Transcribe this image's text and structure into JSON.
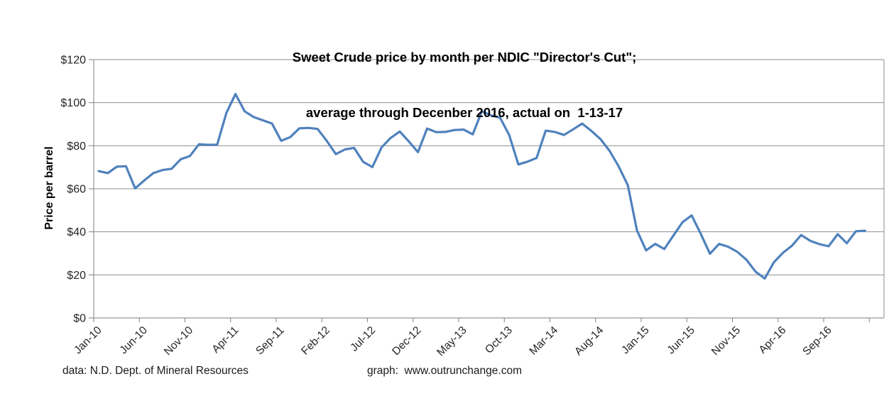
{
  "title": {
    "line1": "Sweet Crude price by month per NDIC \"Director's Cut\";",
    "line2": "average through Decenber 2016, actual on  1-13-17"
  },
  "footer": {
    "data_source": "data: N.D. Dept. of Mineral Resources",
    "graph_credit": "graph:  www.outrunchange.com"
  },
  "colors": {
    "line": "#4F81BD",
    "gridline": "#8e8e8e",
    "axis": "#7f7f7f",
    "tick_text": "#262626"
  },
  "chart_data": {
    "type": "line",
    "title": "Sweet Crude price by month per NDIC \"Director's Cut\"; average through Decenber 2016, actual on  1-13-17",
    "xlabel": "",
    "ylabel": "Price per barrel",
    "ylim": [
      0,
      120
    ],
    "ytick_step": 20,
    "ytick_prefix": "$",
    "xtick_every": 5,
    "grid": true,
    "legend": "none",
    "categories": [
      "Jan-10",
      "Feb-10",
      "Mar-10",
      "Apr-10",
      "May-10",
      "Jun-10",
      "Jul-10",
      "Aug-10",
      "Sep-10",
      "Oct-10",
      "Nov-10",
      "Dec-10",
      "Jan-11",
      "Feb-11",
      "Mar-11",
      "Apr-11",
      "May-11",
      "Jun-11",
      "Jul-11",
      "Aug-11",
      "Sep-11",
      "Oct-11",
      "Nov-11",
      "Dec-11",
      "Jan-12",
      "Feb-12",
      "Mar-12",
      "Apr-12",
      "May-12",
      "Jun-12",
      "Jul-12",
      "Aug-12",
      "Sep-12",
      "Oct-12",
      "Nov-12",
      "Dec-12",
      "Jan-13",
      "Feb-13",
      "Mar-13",
      "Apr-13",
      "May-13",
      "Jun-13",
      "Jul-13",
      "Aug-13",
      "Sep-13",
      "Oct-13",
      "Nov-13",
      "Dec-13",
      "Jan-14",
      "Feb-14",
      "Mar-14",
      "Apr-14",
      "May-14",
      "Jun-14",
      "Jul-14",
      "Aug-14",
      "Sep-14",
      "Oct-14",
      "Nov-14",
      "Dec-14",
      "Jan-15",
      "Feb-15",
      "Mar-15",
      "Apr-15",
      "May-15",
      "Jun-15",
      "Jul-15",
      "Aug-15",
      "Sep-15",
      "Oct-15",
      "Nov-15",
      "Dec-15",
      "Jan-16",
      "Feb-16",
      "Mar-16",
      "Apr-16",
      "May-16",
      "Jun-16",
      "Jul-16",
      "Aug-16",
      "Sep-16",
      "Oct-16",
      "Nov-16",
      "Dec-16",
      "Jan-17"
    ],
    "values": [
      68.2,
      67.3,
      70.3,
      70.5,
      60.2,
      63.9,
      67.3,
      68.7,
      69.3,
      73.7,
      75.2,
      80.7,
      80.4,
      80.5,
      95.2,
      104.0,
      96.0,
      93.3,
      91.8,
      90.3,
      82.3,
      84.0,
      88.1,
      88.3,
      87.8,
      82.3,
      76.1,
      78.3,
      79.0,
      72.5,
      70.1,
      79.2,
      83.6,
      86.6,
      82.0,
      77.0,
      88.0,
      86.3,
      86.4,
      87.3,
      87.5,
      85.3,
      96.0,
      94.1,
      93.0,
      85.0,
      71.3,
      72.6,
      74.3,
      87.0,
      86.4,
      85.0,
      87.6,
      90.3,
      86.9,
      83.1,
      77.6,
      70.4,
      61.6,
      40.7,
      31.4,
      34.4,
      32.0,
      38.3,
      44.5,
      47.6,
      39.0,
      29.8,
      34.4,
      33.1,
      30.7,
      27.0,
      21.5,
      18.3,
      25.8,
      30.3,
      33.6,
      38.5,
      35.8,
      34.3,
      33.3,
      38.9,
      34.7,
      40.3,
      40.5
    ]
  }
}
